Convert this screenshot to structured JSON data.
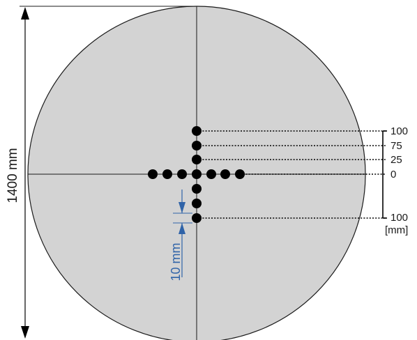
{
  "diagram": {
    "diameter_label": "1400 mm",
    "spacing_label": "10 mm",
    "depth_labels": [
      "100",
      "75",
      "25",
      "0",
      "100"
    ],
    "unit_label": "[mm]",
    "colors": {
      "disk_fill": "#d3d3d3",
      "disk_stroke": "#1a1a1a",
      "points": "#000000",
      "blue_dimension": "#2f63a8"
    }
  }
}
